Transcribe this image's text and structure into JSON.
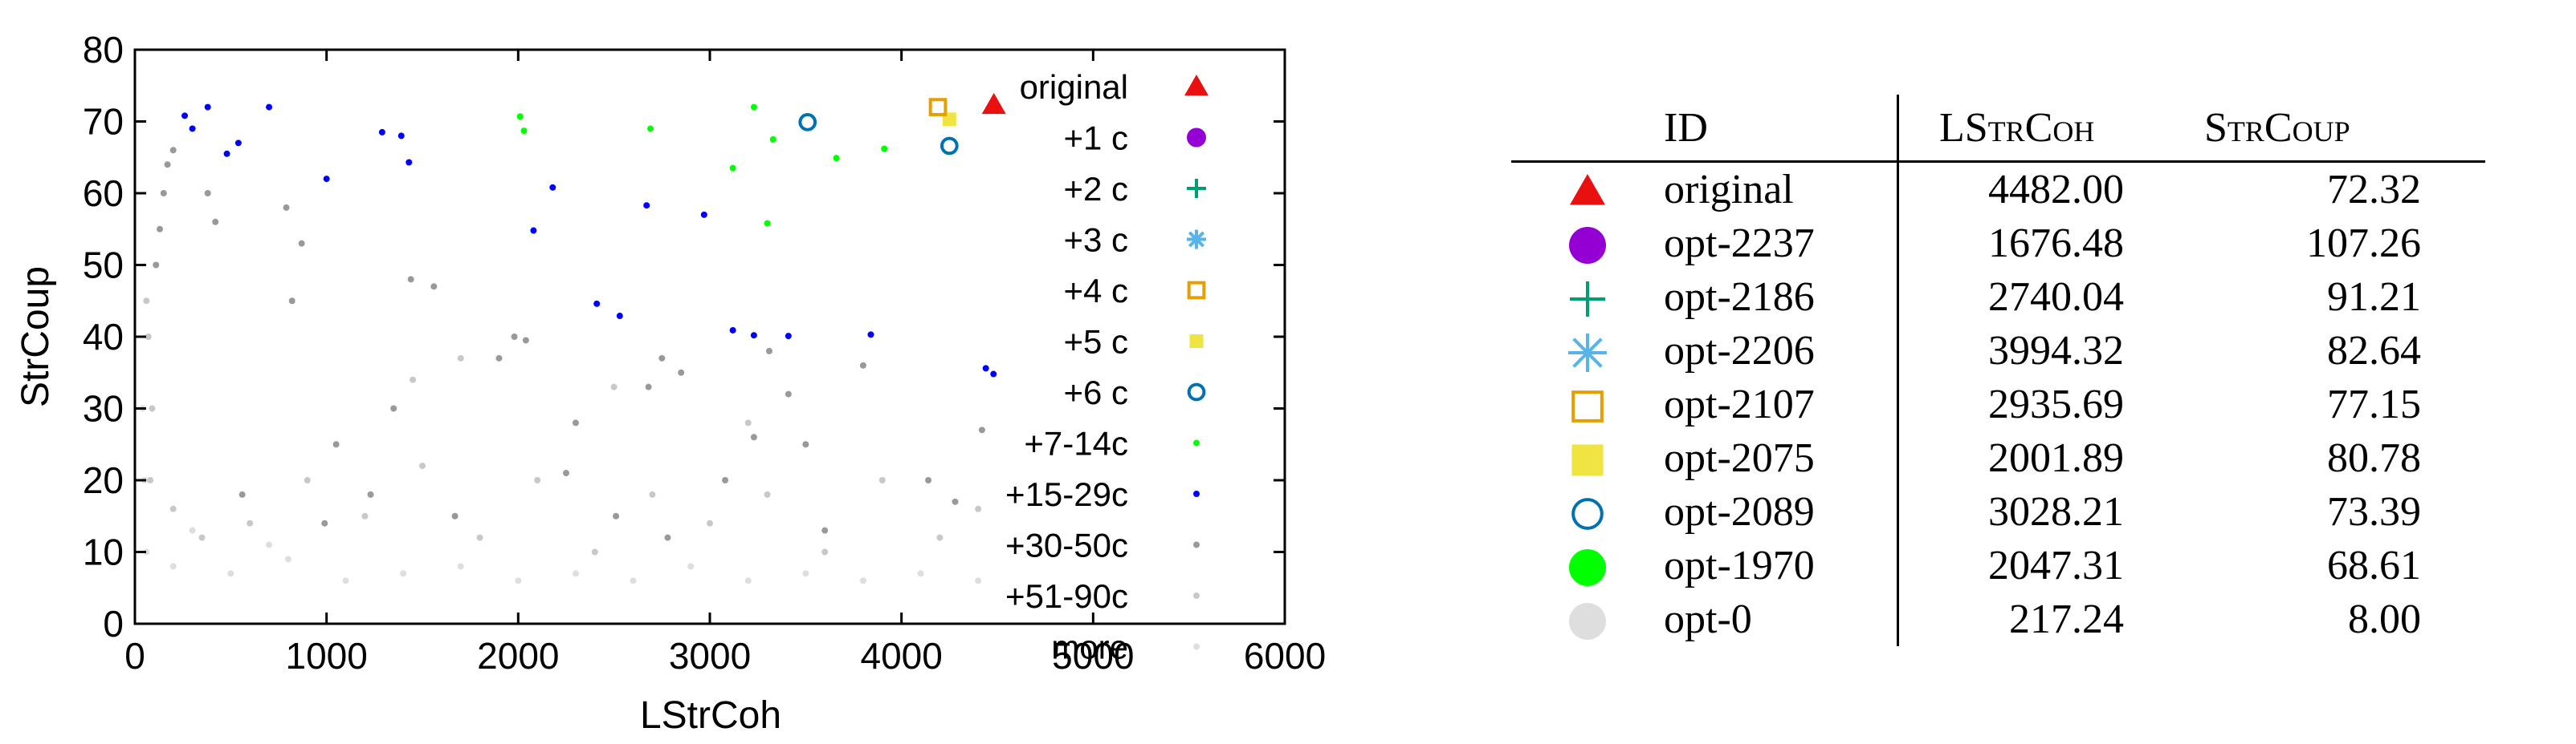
{
  "chart_data": {
    "type": "scatter",
    "xlabel": "LStrCoh",
    "ylabel": "StrCoup",
    "xlim": [
      0,
      6000
    ],
    "ylim": [
      0,
      80
    ],
    "x_ticks": [
      "0",
      "1000",
      "2000",
      "3000",
      "4000",
      "5000",
      "6000"
    ],
    "y_ticks": [
      "0",
      "10",
      "20",
      "30",
      "40",
      "50",
      "60",
      "70",
      "80"
    ],
    "grid": false,
    "legend_position": "top-right, inside",
    "series": [
      {
        "name": "original",
        "marker": "filled-triangle",
        "color": "#e8110f",
        "points": [
          [
            4482,
            72.3
          ]
        ]
      },
      {
        "name": "+1 c",
        "marker": "filled-circle",
        "color": "#9400d3",
        "points": []
      },
      {
        "name": "+2 c",
        "marker": "plus",
        "color": "#009e73",
        "points": []
      },
      {
        "name": "+3 c",
        "marker": "asterisk",
        "color": "#56b4e9",
        "points": []
      },
      {
        "name": "+4 c",
        "marker": "open-square",
        "color": "#e69f00",
        "points": [
          [
            4190,
            72.0
          ]
        ]
      },
      {
        "name": "+5 c",
        "marker": "filled-square",
        "color": "#f0e442",
        "points": [
          [
            4250,
            70.3
          ]
        ]
      },
      {
        "name": "+6 c",
        "marker": "open-circle",
        "color": "#0072b2",
        "points": [
          [
            3510,
            69.9
          ],
          [
            4250,
            66.6
          ]
        ]
      },
      {
        "name": "+7-14c",
        "marker": "dot",
        "color": "#00ff00",
        "points": [
          [
            2010,
            70.7
          ],
          [
            2030,
            68.7
          ],
          [
            2690,
            69.0
          ],
          [
            3230,
            72.0
          ],
          [
            3330,
            67.5
          ],
          [
            3120,
            63.5
          ],
          [
            3660,
            64.9
          ],
          [
            3910,
            66.2
          ],
          [
            3300,
            55.8
          ]
        ]
      },
      {
        "name": "+15-29c",
        "marker": "dot",
        "color": "#0000ff",
        "points": [
          [
            260,
            70.8
          ],
          [
            300,
            69.0
          ],
          [
            380,
            72.0
          ],
          [
            700,
            72.0
          ],
          [
            540,
            67.0
          ],
          [
            480,
            65.5
          ],
          [
            1000,
            62.0
          ],
          [
            1290,
            68.5
          ],
          [
            1390,
            68.0
          ],
          [
            1430,
            64.3
          ],
          [
            2180,
            60.8
          ],
          [
            2080,
            54.8
          ],
          [
            2670,
            58.3
          ],
          [
            2970,
            57.0
          ],
          [
            2410,
            44.6
          ],
          [
            2530,
            42.9
          ],
          [
            3120,
            40.9
          ],
          [
            3230,
            40.2
          ],
          [
            3410,
            40.1
          ],
          [
            3840,
            40.3
          ],
          [
            4440,
            35.6
          ],
          [
            4480,
            34.8
          ]
        ]
      },
      {
        "name": "+30-50c",
        "marker": "dot",
        "color": "#999999",
        "points": [
          [
            150,
            60
          ],
          [
            170,
            64
          ],
          [
            200,
            66
          ],
          [
            130,
            55
          ],
          [
            110,
            50
          ],
          [
            380,
            60
          ],
          [
            420,
            56
          ],
          [
            790,
            58
          ],
          [
            870,
            53
          ],
          [
            1560,
            47
          ],
          [
            1440,
            48
          ],
          [
            820,
            45
          ],
          [
            1980,
            40
          ],
          [
            2040,
            39.5
          ],
          [
            1900,
            37
          ],
          [
            2750,
            37
          ],
          [
            2850,
            35
          ],
          [
            3310,
            38
          ],
          [
            3410,
            32
          ],
          [
            3800,
            36
          ],
          [
            2680,
            33
          ],
          [
            1350,
            30
          ],
          [
            1050,
            25
          ],
          [
            2300,
            28
          ],
          [
            3230,
            26
          ],
          [
            3500,
            25
          ],
          [
            4420,
            27
          ],
          [
            4140,
            20
          ],
          [
            3080,
            20
          ],
          [
            2510,
            15
          ],
          [
            1670,
            15
          ],
          [
            990,
            14
          ],
          [
            2780,
            12
          ],
          [
            3600,
            13
          ],
          [
            4280,
            17
          ],
          [
            560,
            18
          ],
          [
            2250,
            21
          ],
          [
            1230,
            18
          ]
        ]
      },
      {
        "name": "+51-90c",
        "marker": "dot",
        "color": "#c8c8c8",
        "points": [
          [
            60,
            45
          ],
          [
            70,
            40
          ],
          [
            90,
            30
          ],
          [
            80,
            20
          ],
          [
            200,
            16
          ],
          [
            350,
            12
          ],
          [
            600,
            14
          ],
          [
            900,
            20
          ],
          [
            1200,
            15
          ],
          [
            1500,
            22
          ],
          [
            1800,
            12
          ],
          [
            2100,
            20
          ],
          [
            2400,
            10
          ],
          [
            2700,
            18
          ],
          [
            3000,
            14
          ],
          [
            3300,
            18
          ],
          [
            3600,
            10
          ],
          [
            3900,
            20
          ],
          [
            4200,
            12
          ],
          [
            4400,
            16
          ],
          [
            2500,
            33
          ],
          [
            1700,
            37
          ],
          [
            1450,
            34
          ],
          [
            3200,
            28
          ]
        ]
      },
      {
        "name": "more",
        "marker": "dot",
        "color": "#dedede",
        "points": [
          [
            40,
            30
          ],
          [
            50,
            20
          ],
          [
            60,
            10
          ],
          [
            200,
            8
          ],
          [
            500,
            7
          ],
          [
            800,
            9
          ],
          [
            1100,
            6
          ],
          [
            1400,
            7
          ],
          [
            1700,
            8
          ],
          [
            2000,
            6
          ],
          [
            2300,
            7
          ],
          [
            2600,
            6
          ],
          [
            2900,
            8
          ],
          [
            3200,
            6
          ],
          [
            3500,
            7
          ],
          [
            3800,
            6
          ],
          [
            4100,
            7
          ],
          [
            4400,
            6
          ],
          [
            300,
            13
          ],
          [
            700,
            11
          ]
        ]
      }
    ]
  },
  "table": {
    "headers": {
      "id": "ID",
      "col1": "LStrCoh",
      "col2": "StrCoup"
    },
    "rows": [
      {
        "symbol": "filled-triangle",
        "color": "#e8110f",
        "id": "original",
        "lstrcoh": "4482.00",
        "strcoup": "72.32"
      },
      {
        "symbol": "filled-circle",
        "color": "#9400d3",
        "id": "opt-2237",
        "lstrcoh": "1676.48",
        "strcoup": "107.26"
      },
      {
        "symbol": "plus",
        "color": "#009e73",
        "id": "opt-2186",
        "lstrcoh": "2740.04",
        "strcoup": "91.21"
      },
      {
        "symbol": "asterisk",
        "color": "#56b4e9",
        "id": "opt-2206",
        "lstrcoh": "3994.32",
        "strcoup": "82.64"
      },
      {
        "symbol": "open-square",
        "color": "#e69f00",
        "id": "opt-2107",
        "lstrcoh": "2935.69",
        "strcoup": "77.15"
      },
      {
        "symbol": "filled-square",
        "color": "#f0e442",
        "id": "opt-2075",
        "lstrcoh": "2001.89",
        "strcoup": "80.78"
      },
      {
        "symbol": "open-circle",
        "color": "#0072b2",
        "id": "opt-2089",
        "lstrcoh": "3028.21",
        "strcoup": "73.39"
      },
      {
        "symbol": "filled-circle",
        "color": "#00ff00",
        "id": "opt-1970",
        "lstrcoh": "2047.31",
        "strcoup": "68.61"
      },
      {
        "symbol": "filled-circle",
        "color": "#dedede",
        "id": "opt-0",
        "lstrcoh": "217.24",
        "strcoup": "8.00"
      }
    ]
  }
}
